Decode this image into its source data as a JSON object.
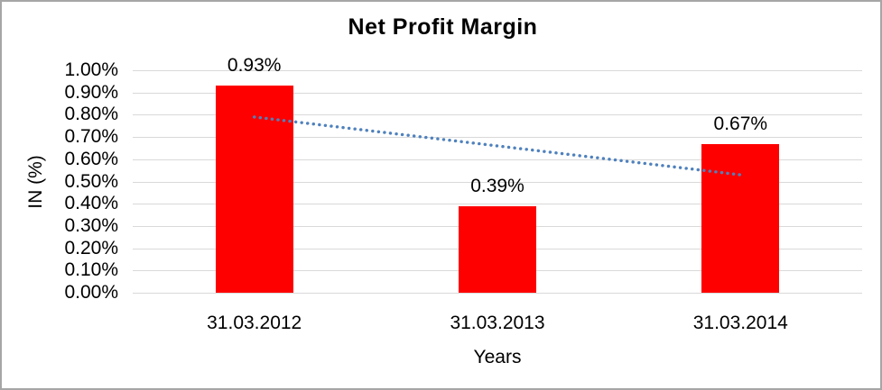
{
  "chart_data": {
    "type": "bar",
    "title": "Net Profit Margin",
    "xlabel": "Years",
    "ylabel": "IN (%)",
    "categories": [
      "31.03.2012",
      "31.03.2013",
      "31.03.2014"
    ],
    "values": [
      0.93,
      0.39,
      0.67
    ],
    "data_labels": [
      "0.93%",
      "0.39%",
      "0.67%"
    ],
    "y_ticks": [
      {
        "value": 1.0,
        "label": "1.00%"
      },
      {
        "value": 0.9,
        "label": "0.90%"
      },
      {
        "value": 0.8,
        "label": "0.80%"
      },
      {
        "value": 0.7,
        "label": "0.70%"
      },
      {
        "value": 0.6,
        "label": "0.60%"
      },
      {
        "value": 0.5,
        "label": "0.50%"
      },
      {
        "value": 0.4,
        "label": "0.40%"
      },
      {
        "value": 0.3,
        "label": "0.30%"
      },
      {
        "value": 0.2,
        "label": "0.20%"
      },
      {
        "value": 0.1,
        "label": "0.10%"
      },
      {
        "value": 0.0,
        "label": "0.00%"
      }
    ],
    "ylim": [
      0,
      1.0
    ],
    "grid": true,
    "legend": "none",
    "trendline": {
      "type": "linear",
      "style": "dotted",
      "start_value": 0.79,
      "end_value": 0.53
    },
    "colors": {
      "bar": "#FF0000",
      "gridline": "#D9D9D9",
      "trendline": "#4F81BD",
      "text": "#000000",
      "border": "#A6A6A6",
      "background": "#FFFFFF"
    }
  }
}
